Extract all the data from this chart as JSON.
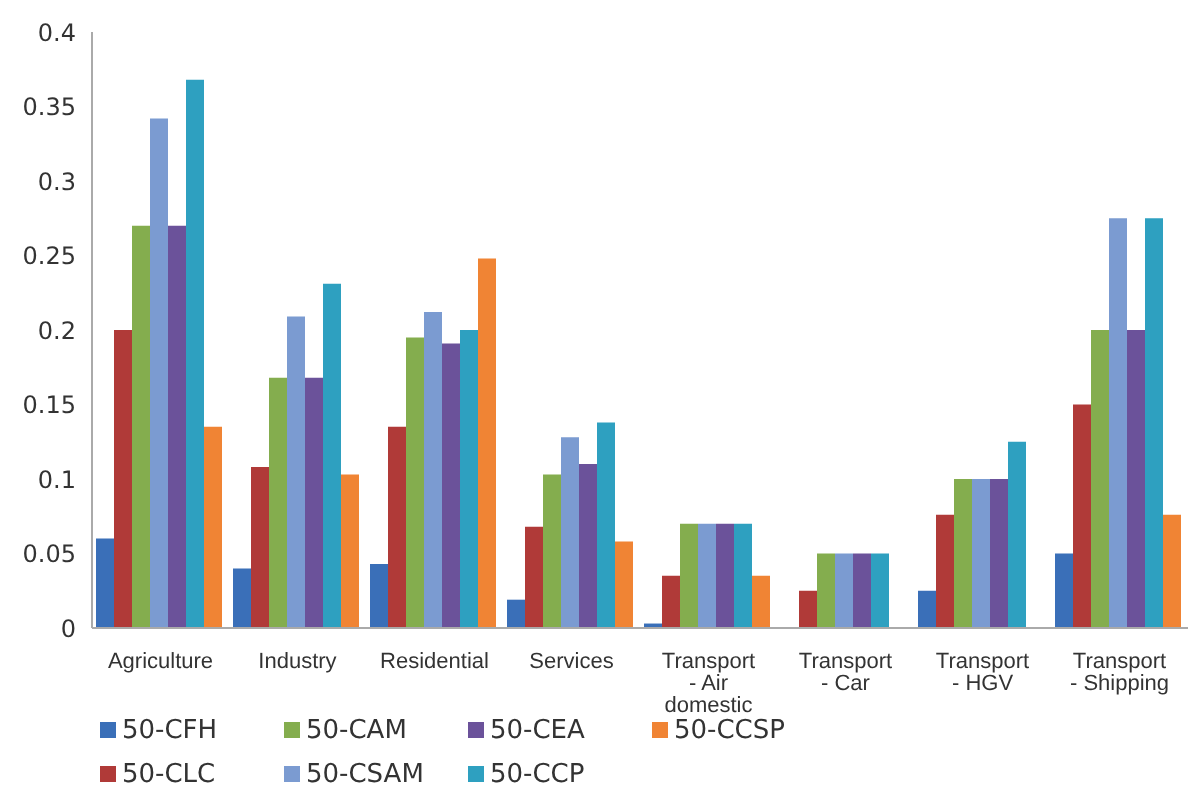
{
  "chart_data": {
    "type": "bar",
    "categories": [
      "Agriculture",
      "Industry",
      "Residential",
      "Services",
      "Transport - Air domestic",
      "Transport - Car",
      "Transport - HGV",
      "Transport - Shipping"
    ],
    "series": [
      {
        "name": "50-CFH",
        "color": "#3a6fb8",
        "values": [
          0.06,
          0.04,
          0.043,
          0.019,
          0.003,
          0,
          0.025,
          0.05
        ]
      },
      {
        "name": "50-CLC",
        "color": "#b03a38",
        "values": [
          0.2,
          0.108,
          0.135,
          0.068,
          0.035,
          0.025,
          0.076,
          0.15
        ]
      },
      {
        "name": "50-CAM",
        "color": "#84ad4e",
        "values": [
          0.27,
          0.168,
          0.195,
          0.103,
          0.07,
          0.05,
          0.1,
          0.2
        ]
      },
      {
        "name": "50-CSAM",
        "color": "#7b9bd1",
        "values": [
          0.342,
          0.209,
          0.212,
          0.128,
          0.07,
          0.05,
          0.1,
          0.275
        ]
      },
      {
        "name": "50-CEA",
        "color": "#6b529a",
        "values": [
          0.27,
          0.168,
          0.191,
          0.11,
          0.07,
          0.05,
          0.1,
          0.2
        ]
      },
      {
        "name": "50-CCP",
        "color": "#2ea0c0",
        "values": [
          0.368,
          0.231,
          0.2,
          0.138,
          0.07,
          0.05,
          0.125,
          0.275
        ]
      },
      {
        "name": "50-CCSP",
        "color": "#f08434",
        "values": [
          0.135,
          0.103,
          0.248,
          0.058,
          0.035,
          0,
          0,
          0.076
        ]
      }
    ],
    "ylim": [
      0,
      0.4
    ],
    "yticks": [
      0,
      0.05,
      0.1,
      0.15,
      0.2,
      0.25,
      0.3,
      0.35,
      0.4
    ],
    "grid": false,
    "legend": "bottom"
  }
}
